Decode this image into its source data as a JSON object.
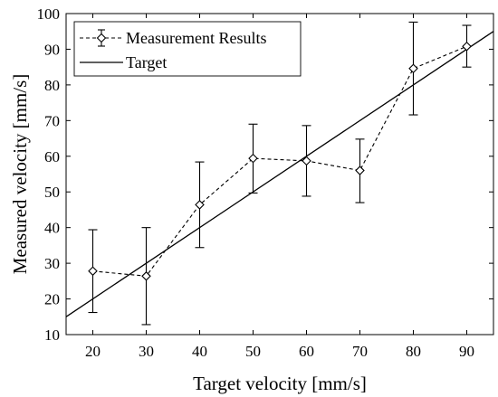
{
  "chart_data": {
    "type": "line",
    "title": "",
    "xlabel": "Target velocity [mm/s]",
    "ylabel": "Measured velocity [mm/s]",
    "xlim": [
      15,
      95
    ],
    "ylim": [
      10,
      100
    ],
    "x_ticks": [
      20,
      30,
      40,
      50,
      60,
      70,
      80,
      90
    ],
    "y_ticks": [
      10,
      20,
      30,
      40,
      50,
      60,
      70,
      80,
      90,
      100
    ],
    "grid": false,
    "legend_position": "top-left",
    "series": [
      {
        "name": "Measurement Results",
        "style": "dashed",
        "marker": "diamond",
        "color": "#000000",
        "x": [
          20,
          30,
          40,
          50,
          60,
          70,
          80,
          90
        ],
        "y": [
          27.8,
          26.4,
          46.4,
          59.4,
          58.7,
          56.0,
          84.6,
          90.8
        ],
        "err_low": [
          16.2,
          12.8,
          34.4,
          49.7,
          48.8,
          47.0,
          71.6,
          85.0
        ],
        "err_high": [
          39.4,
          40.0,
          58.4,
          69.0,
          68.6,
          64.8,
          97.6,
          96.7
        ]
      },
      {
        "name": "Target",
        "style": "solid",
        "color": "#000000",
        "x": [
          15,
          95
        ],
        "y": [
          15,
          95
        ]
      }
    ]
  }
}
